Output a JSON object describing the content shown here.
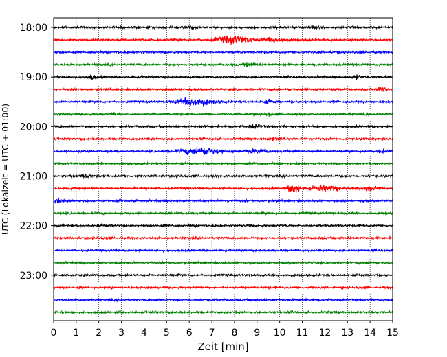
{
  "chart_data": {
    "type": "line",
    "title": "",
    "xlabel": "Zeit  [min]",
    "ylabel": "UTC (Lokalzeit = UTC + 01:00)",
    "xlim": [
      0,
      15
    ],
    "x_ticks": [
      0,
      1,
      2,
      3,
      4,
      5,
      6,
      7,
      8,
      9,
      10,
      11,
      12,
      13,
      14,
      15
    ],
    "y_tick_labels": [
      "18:00",
      "19:00",
      "20:00",
      "21:00",
      "22:00",
      "23:00"
    ],
    "grid": "vertical-dotted",
    "row_interval_minutes": 15,
    "start_time": "18:00",
    "rows": [
      {
        "time": "18:00",
        "color": "#000000",
        "events": [
          {
            "min": 6.0,
            "amp": 1.2,
            "width": 0.6
          },
          {
            "min": 11.5,
            "amp": 1.1,
            "width": 0.6
          }
        ]
      },
      {
        "time": "18:15",
        "color": "#ff0000",
        "events": [
          {
            "min": 8.0,
            "amp": 3.5,
            "width": 1.6
          },
          {
            "min": 9.8,
            "amp": 1.6,
            "width": 1.0
          }
        ]
      },
      {
        "time": "18:30",
        "color": "#0000ff",
        "events": []
      },
      {
        "time": "18:45",
        "color": "#008000",
        "events": [
          {
            "min": 8.7,
            "amp": 1.6,
            "width": 0.5
          }
        ]
      },
      {
        "time": "19:00",
        "color": "#000000",
        "events": [
          {
            "min": 1.7,
            "amp": 2.0,
            "width": 0.4
          },
          {
            "min": 13.4,
            "amp": 1.6,
            "width": 0.5
          }
        ]
      },
      {
        "time": "19:15",
        "color": "#ff0000",
        "events": [
          {
            "min": 14.5,
            "amp": 2.2,
            "width": 0.4
          }
        ]
      },
      {
        "time": "19:30",
        "color": "#0000ff",
        "events": [
          {
            "min": 6.3,
            "amp": 3.8,
            "width": 1.5
          },
          {
            "min": 9.5,
            "amp": 1.3,
            "width": 0.6
          }
        ]
      },
      {
        "time": "19:45",
        "color": "#008000",
        "events": [
          {
            "min": 2.7,
            "amp": 1.3,
            "width": 0.3
          },
          {
            "min": 9.5,
            "amp": 1.3,
            "width": 0.2
          }
        ]
      },
      {
        "time": "20:00",
        "color": "#000000",
        "events": [
          {
            "min": 8.8,
            "amp": 1.6,
            "width": 0.5
          }
        ]
      },
      {
        "time": "20:15",
        "color": "#ff0000",
        "events": [
          {
            "min": 9.8,
            "amp": 1.3,
            "width": 0.5
          }
        ]
      },
      {
        "time": "20:30",
        "color": "#0000ff",
        "events": [
          {
            "min": 6.5,
            "amp": 3.2,
            "width": 1.8
          },
          {
            "min": 9.0,
            "amp": 1.6,
            "width": 1.2
          },
          {
            "min": 14.5,
            "amp": 1.3,
            "width": 0.4
          }
        ]
      },
      {
        "time": "20:45",
        "color": "#008000",
        "events": []
      },
      {
        "time": "21:00",
        "color": "#000000",
        "events": [
          {
            "min": 1.4,
            "amp": 1.8,
            "width": 0.5
          }
        ]
      },
      {
        "time": "21:15",
        "color": "#ff0000",
        "events": [
          {
            "min": 10.6,
            "amp": 4.5,
            "width": 0.5
          },
          {
            "min": 12.0,
            "amp": 2.4,
            "width": 1.4
          },
          {
            "min": 14.0,
            "amp": 1.3,
            "width": 0.8
          }
        ]
      },
      {
        "time": "21:30",
        "color": "#0000ff",
        "events": [
          {
            "min": 0.2,
            "amp": 2.0,
            "width": 0.3
          }
        ]
      },
      {
        "time": "21:45",
        "color": "#008000",
        "events": []
      },
      {
        "time": "22:00",
        "color": "#000000",
        "events": []
      },
      {
        "time": "22:15",
        "color": "#ff0000",
        "events": []
      },
      {
        "time": "22:30",
        "color": "#0000ff",
        "events": []
      },
      {
        "time": "22:45",
        "color": "#008000",
        "events": []
      },
      {
        "time": "23:00",
        "color": "#000000",
        "events": []
      },
      {
        "time": "23:15",
        "color": "#ff0000",
        "events": []
      },
      {
        "time": "23:30",
        "color": "#0000ff",
        "events": []
      },
      {
        "time": "23:45",
        "color": "#008000",
        "events": []
      }
    ]
  }
}
